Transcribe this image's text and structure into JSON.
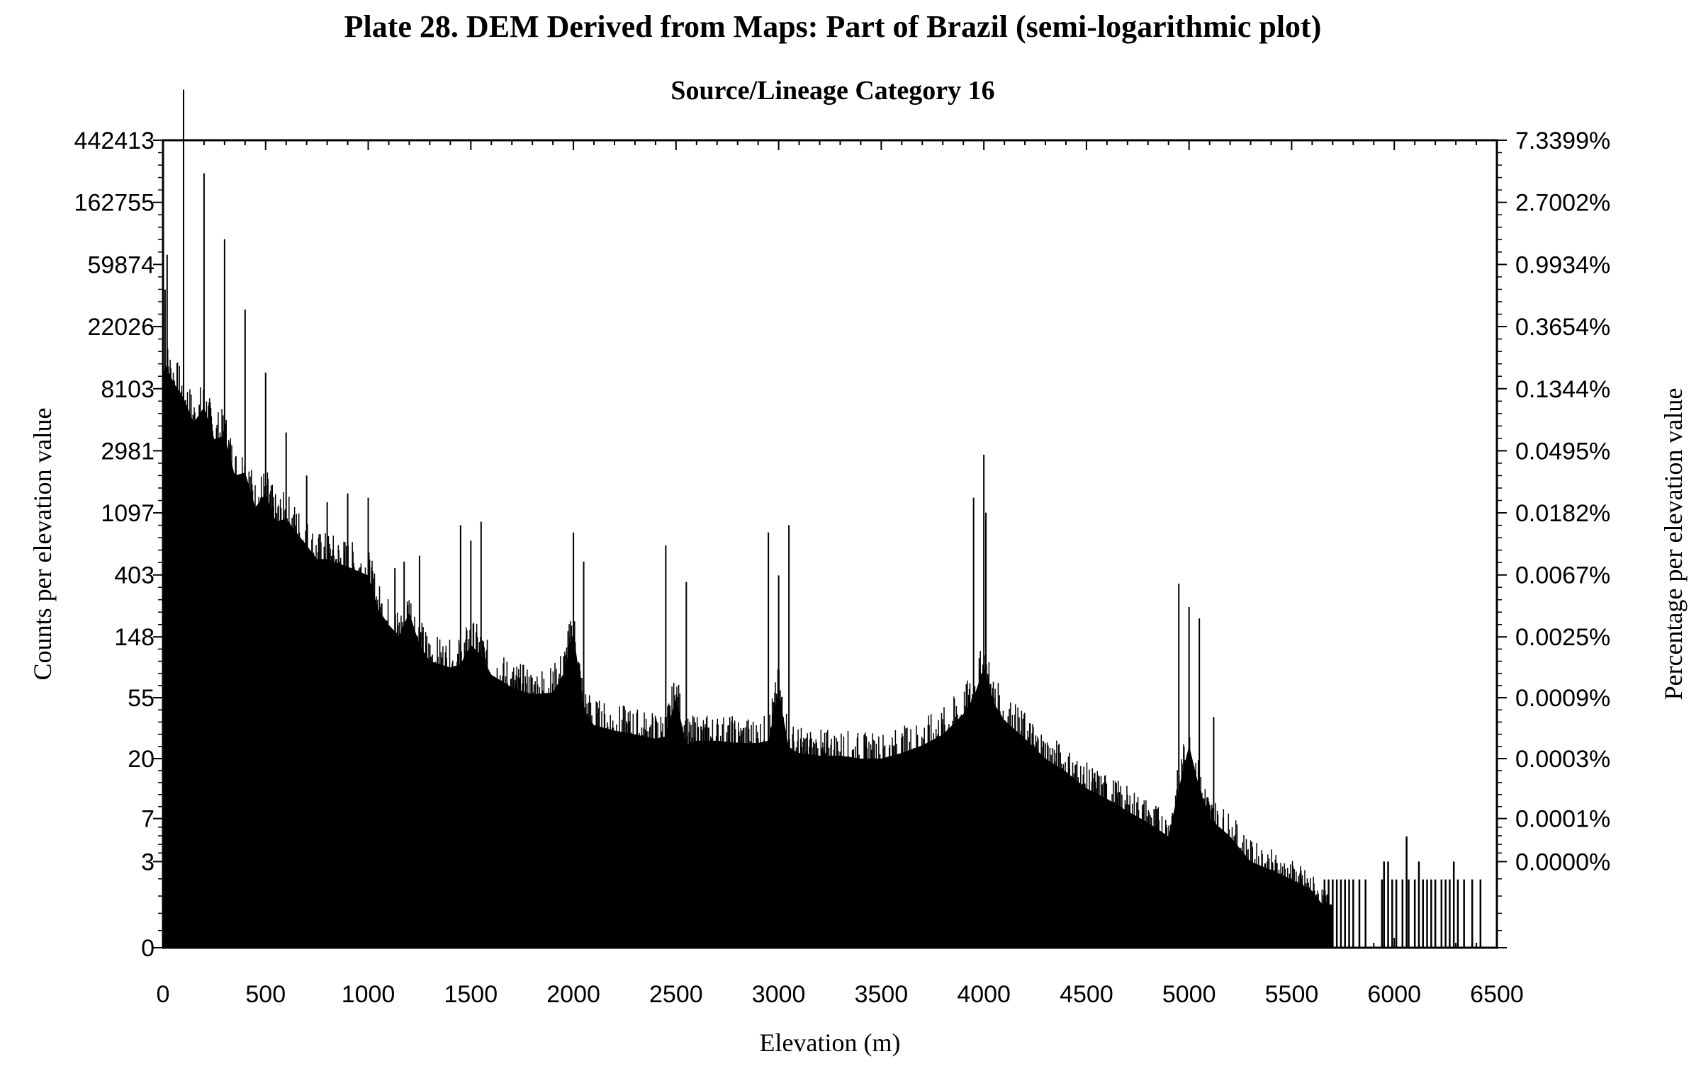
{
  "chart_data": {
    "type": "bar",
    "title": "Plate 28. DEM Derived from Maps: Part of Brazil (semi-logarithmic plot)",
    "subtitle": "Source/Lineage Category 16",
    "xlabel": "Elevation (m)",
    "ylabel": "Counts per elevation value",
    "ylabel_right": "Percentage per elevation value",
    "y_scale": "log(count+1)",
    "xlim": [
      0,
      6500
    ],
    "x_ticks": [
      "0",
      "500",
      "1000",
      "1500",
      "2000",
      "2500",
      "3000",
      "3500",
      "4000",
      "4500",
      "5000",
      "5500",
      "6000",
      "6500"
    ],
    "y_ticks": [
      "0",
      "3",
      "7",
      "20",
      "55",
      "148",
      "403",
      "1097",
      "2981",
      "8103",
      "22026",
      "59874",
      "162755",
      "442413"
    ],
    "y_ticks_right": [
      "0.0000%",
      "0.0001%",
      "0.0003%",
      "0.0009%",
      "0.0025%",
      "0.0067%",
      "0.0182%",
      "0.0495%",
      "0.1344%",
      "0.3654%",
      "0.9934%",
      "2.7002%",
      "7.3399%"
    ],
    "baseline_profile": {
      "x": [
        0,
        10,
        50,
        100,
        150,
        200,
        250,
        300,
        350,
        400,
        450,
        500,
        550,
        600,
        650,
        700,
        750,
        800,
        900,
        1000,
        1050,
        1100,
        1150,
        1200,
        1250,
        1300,
        1400,
        1450,
        1500,
        1550,
        1600,
        1700,
        1800,
        1900,
        1950,
        2000,
        2050,
        2100,
        2200,
        2300,
        2400,
        2450,
        2500,
        2550,
        2600,
        2700,
        2800,
        2900,
        2950,
        3000,
        3050,
        3100,
        3200,
        3300,
        3400,
        3500,
        3600,
        3700,
        3800,
        3900,
        3950,
        4000,
        4050,
        4100,
        4200,
        4300,
        4400,
        4500,
        4600,
        4700,
        4800,
        4900,
        4950,
        5000,
        5050,
        5100,
        5200,
        5300,
        5400,
        5500,
        5600,
        5650,
        5700
      ],
      "y": [
        9000,
        12000,
        9000,
        7000,
        4700,
        6000,
        3600,
        3800,
        2000,
        2100,
        1200,
        1500,
        950,
        1000,
        800,
        650,
        520,
        520,
        460,
        400,
        230,
        180,
        150,
        220,
        130,
        100,
        90,
        95,
        130,
        110,
        80,
        65,
        58,
        60,
        80,
        160,
        45,
        35,
        32,
        30,
        28,
        29,
        55,
        25,
        27,
        27,
        26,
        26,
        27,
        60,
        24,
        22,
        21,
        21,
        20,
        20,
        22,
        25,
        30,
        42,
        55,
        90,
        50,
        38,
        28,
        20,
        16,
        12,
        10,
        8,
        6.5,
        5,
        12,
        25,
        12,
        7,
        5,
        3,
        2.5,
        2,
        1.5,
        1,
        1
      ]
    },
    "spikes": {
      "x": [
        10,
        20,
        100,
        200,
        300,
        400,
        500,
        600,
        700,
        800,
        900,
        1000,
        1130,
        1175,
        1250,
        1450,
        1500,
        1550,
        2000,
        2050,
        2450,
        2550,
        2950,
        3000,
        3050,
        3950,
        4000,
        4010,
        4950,
        5000,
        5050,
        5120
      ],
      "y": [
        40000,
        70000,
        1000000,
        260000,
        90000,
        29000,
        10500,
        4000,
        2000,
        1300,
        1500,
        1400,
        450,
        500,
        550,
        900,
        700,
        950,
        800,
        500,
        650,
        360,
        800,
        400,
        900,
        1400,
        2800,
        1100,
        350,
        240,
        200,
        40
      ]
    },
    "sparse_tail": {
      "x": [
        5660,
        5680,
        5700,
        5720,
        5740,
        5760,
        5780,
        5800,
        5830,
        5860,
        5940,
        5950,
        5970,
        5990,
        6010,
        6040,
        6060,
        6070,
        6100,
        6120,
        6140,
        6160,
        6180,
        6200,
        6230,
        6250,
        6270,
        6290,
        6310,
        6340,
        6380,
        6420
      ],
      "y": [
        2,
        2,
        2,
        2,
        2,
        2,
        2,
        2,
        2,
        2,
        2,
        3,
        3,
        2,
        2,
        2,
        5,
        2,
        2,
        3,
        2,
        2,
        2,
        2,
        2,
        2,
        2,
        3,
        2,
        2,
        2,
        2
      ]
    }
  }
}
